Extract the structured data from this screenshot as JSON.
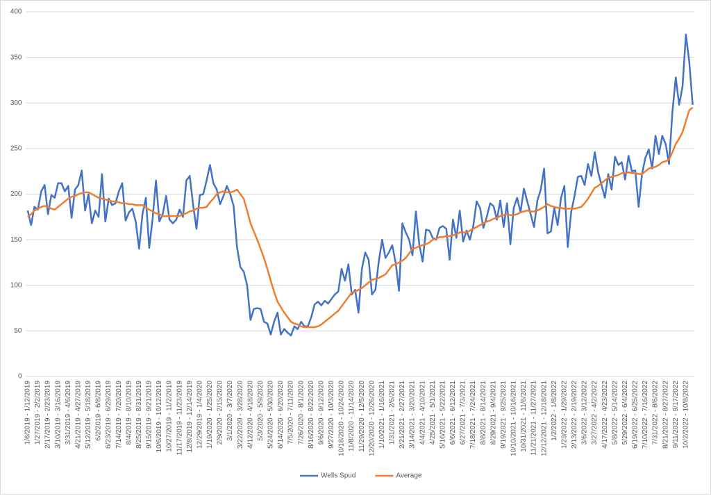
{
  "chart_data": {
    "type": "line",
    "categories": [
      "1/6/2019 - 1/12/2019",
      null,
      null,
      "1/27/2019 - 2/2/2019",
      null,
      null,
      "2/17/2019 - 2/23/2019",
      null,
      null,
      "3/10/2019 - 3/16/2019",
      null,
      null,
      "3/31/2019 - 4/6/2019",
      null,
      null,
      "4/21/2019 - 4/27/2019",
      null,
      null,
      "5/12/2019 - 5/18/2019",
      null,
      null,
      "6/2/2019 - 6/8/2019",
      null,
      null,
      "6/23/2019 - 6/29/2019",
      null,
      null,
      "7/14/2019 - 7/20/2019",
      null,
      null,
      "8/4/2019 - 8/10/2019",
      null,
      null,
      "8/25/2019 - 8/31/2019",
      null,
      null,
      "9/15/2019 - 9/21/2019",
      null,
      null,
      "10/6/2019 - 10/12/2019",
      null,
      null,
      "10/27/2019 - 11/2/2019",
      null,
      null,
      "11/17/2019 - 11/23/2019",
      null,
      null,
      "12/8/2019 - 12/14/2019",
      null,
      null,
      "12/29/2019 - 1/4/2020",
      null,
      null,
      "1/19/2020 - 1/25/2020",
      null,
      null,
      "2/9/2020 - 2/15/2020",
      null,
      null,
      "3/1/2020 - 3/7/2020",
      null,
      null,
      "3/22/2020 - 3/28/2020",
      null,
      null,
      "4/12/2020 - 4/18/2020",
      null,
      null,
      "5/3/2020 - 5/9/2020",
      null,
      null,
      "5/24/2020 - 5/30/2020",
      null,
      null,
      "6/14/2020 - 6/20/2020",
      null,
      null,
      "7/5/2020 - 7/11/2020",
      null,
      null,
      "7/26/2020 - 8/1/2020",
      null,
      null,
      "8/16/2020 - 8/22/2020",
      null,
      null,
      "9/6/2020 - 9/12/2020",
      null,
      null,
      "9/27/2020 - 10/3/2020",
      null,
      null,
      "10/18/2020 - 10/24/2020",
      null,
      null,
      "11/8/2020 - 11/14/2020",
      null,
      null,
      "11/29/2020 - 12/5/2020",
      null,
      null,
      "12/20/2020 - 12/26/2020",
      null,
      null,
      "1/10/2021 - 1/16/2021",
      null,
      null,
      "1/31/2021 - 2/6/2021",
      null,
      null,
      "2/21/2021 - 2/27/2021",
      null,
      null,
      "3/14/2021 - 3/20/2021",
      null,
      null,
      "4/4/2021 - 4/10/2021",
      null,
      null,
      "4/25/2021 - 5/1/2021",
      null,
      null,
      "5/16/2021 - 5/22/2021",
      null,
      null,
      "6/6/2021 - 6/12/2021",
      null,
      null,
      "6/27/2021 - 7/3/2021",
      null,
      null,
      "7/18/2021 - 7/24/2021",
      null,
      null,
      "8/8/2021 - 8/14/2021",
      null,
      null,
      "8/29/2021 - 9/4/2021",
      null,
      null,
      "9/19/2021 - 9/25/2021",
      null,
      null,
      "10/10/2021 - 10/16/2021",
      null,
      null,
      "10/31/2021 - 11/6/2021",
      null,
      null,
      "11/21/2021 - 11/27/2021",
      null,
      null,
      "12/12/2021 - 12/18/2021",
      null,
      null,
      "1/2/2022 - 1/8/2022",
      null,
      null,
      "1/23/2022 - 1/29/2022",
      null,
      null,
      "2/13/2022 - 2/19/2022",
      null,
      null,
      "3/6/2022 - 3/12/2022",
      null,
      null,
      "3/27/2022 - 4/2/2022",
      null,
      null,
      "4/17/2022 - 4/23/2022",
      null,
      null,
      "5/8/2022 - 5/14/2022",
      null,
      null,
      "5/29/2022 - 6/4/2022",
      null,
      null,
      "6/19/2022 - 6/25/2022",
      null,
      null,
      "7/10/2022 - 7/16/2022",
      null,
      null,
      "7/31/2022 - 8/6/2022",
      null,
      null,
      "8/21/2022 - 8/27/2022",
      null,
      null,
      "9/11/2022 - 9/17/2022",
      null,
      null,
      "10/2/2022 - 10/8/2022",
      null,
      null
    ],
    "series": [
      {
        "name": "Wells Spud",
        "color": "#4472c4",
        "values": [
          182,
          166,
          186,
          183,
          203,
          210,
          178,
          199,
          196,
          212,
          212,
          203,
          209,
          174,
          205,
          210,
          226,
          182,
          200,
          168,
          182,
          175,
          222,
          170,
          195,
          188,
          190,
          203,
          212,
          171,
          180,
          184,
          170,
          140,
          178,
          196,
          141,
          173,
          215,
          170,
          178,
          198,
          172,
          168,
          172,
          183,
          175,
          215,
          220,
          188,
          162,
          199,
          200,
          215,
          232,
          212,
          205,
          189,
          198,
          209,
          200,
          187,
          142,
          120,
          115,
          100,
          62,
          74,
          75,
          74,
          60,
          58,
          46,
          60,
          70,
          46,
          52,
          48,
          45,
          55,
          52,
          60,
          55,
          55,
          65,
          79,
          82,
          78,
          83,
          80,
          85,
          90,
          93,
          118,
          105,
          123,
          90,
          95,
          70,
          118,
          136,
          128,
          90,
          95,
          126,
          150,
          130,
          136,
          144,
          125,
          94,
          168,
          158,
          150,
          133,
          181,
          145,
          126,
          161,
          160,
          152,
          150,
          163,
          165,
          162,
          128,
          172,
          152,
          182,
          148,
          160,
          150,
          165,
          192,
          185,
          163,
          175,
          190,
          187,
          172,
          193,
          164,
          190,
          145,
          185,
          196,
          180,
          206,
          192,
          178,
          164,
          193,
          205,
          228,
          157,
          159,
          185,
          166,
          196,
          209,
          142,
          180,
          198,
          219,
          220,
          210,
          233,
          220,
          246,
          224,
          210,
          196,
          222,
          205,
          241,
          232,
          235,
          216,
          242,
          225,
          226,
          186,
          222,
          240,
          249,
          228,
          264,
          244,
          264,
          255,
          233,
          290,
          328,
          298,
          318,
          375,
          345,
          298
        ]
      },
      {
        "name": "Average",
        "color": "#ed7d31",
        "values": [
          175,
          178,
          182,
          184,
          186,
          187,
          186,
          184,
          183,
          186,
          189,
          192,
          195,
          197,
          198,
          200,
          201,
          202,
          202,
          200,
          198,
          196,
          195,
          194,
          193,
          192,
          192,
          191,
          190,
          190,
          189,
          189,
          188,
          188,
          188,
          185,
          183,
          181,
          179,
          178,
          176,
          176,
          176,
          176,
          176,
          176,
          178,
          179,
          181,
          182,
          184,
          185,
          185,
          186,
          191,
          195,
          200,
          202,
          203,
          202,
          202,
          203,
          205,
          200,
          195,
          182,
          168,
          159,
          150,
          140,
          130,
          118,
          105,
          93,
          82,
          76,
          70,
          65,
          60,
          58,
          57,
          55,
          54,
          54,
          54,
          54,
          55,
          57,
          60,
          63,
          66,
          69,
          72,
          77,
          82,
          87,
          92,
          93,
          95,
          97,
          100,
          103,
          106,
          107,
          108,
          110,
          112,
          117,
          122,
          123,
          125,
          127,
          130,
          135,
          140,
          141,
          143,
          144,
          145,
          147,
          150,
          151,
          153,
          153,
          154,
          154,
          155,
          156,
          158,
          158,
          158,
          160,
          162,
          164,
          166,
          168,
          170,
          171,
          173,
          174,
          176,
          177,
          178,
          177,
          177,
          178,
          180,
          181,
          182,
          181,
          181,
          182,
          184,
          186,
          189,
          187,
          186,
          185,
          185,
          184,
          184,
          184,
          184,
          185,
          186,
          190,
          195,
          201,
          207,
          209,
          212,
          215,
          218,
          219,
          220,
          221,
          223,
          223,
          224,
          223,
          223,
          222,
          222,
          225,
          228,
          229,
          230,
          232,
          235,
          236,
          238,
          246,
          255,
          261,
          268,
          280,
          292,
          295
        ]
      }
    ],
    "ylim": [
      0,
      400
    ],
    "yticks": [
      0,
      50,
      100,
      150,
      200,
      250,
      300,
      350,
      400
    ],
    "grid": true,
    "legend": "bottom"
  }
}
